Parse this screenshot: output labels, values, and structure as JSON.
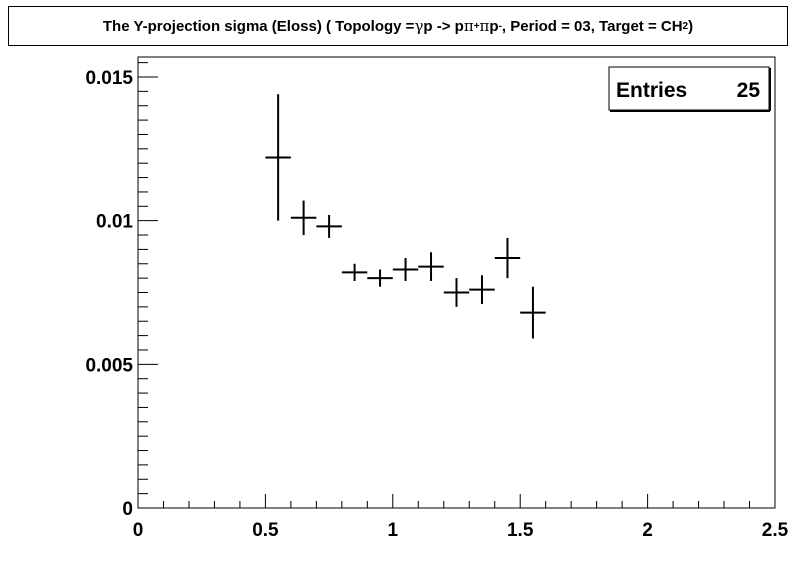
{
  "chart_data": {
    "type": "scatter",
    "title": {
      "prefix": "The Y-projection sigma (Eloss) ( Topology = ",
      "gamma": "γ",
      "mid1": " p -> p ",
      "pi": "π",
      "plus": "+",
      "mid2": " ",
      "pi2": "π",
      "p": "p",
      "minus": "-",
      "mid3": ", Period = 03, Target = CH",
      "sub2": "2",
      "suffix": " )"
    },
    "stats": {
      "label": "Entries",
      "value": "25"
    },
    "xlabel": "",
    "ylabel": "",
    "xlim": [
      0,
      2.5
    ],
    "ylim": [
      0,
      0.016
    ],
    "x_ticks": [
      {
        "v": 0,
        "label": "0"
      },
      {
        "v": 0.5,
        "label": "0.5"
      },
      {
        "v": 1,
        "label": "1"
      },
      {
        "v": 1.5,
        "label": "1.5"
      },
      {
        "v": 2,
        "label": "2"
      },
      {
        "v": 2.5,
        "label": "2.5"
      }
    ],
    "y_ticks": [
      {
        "v": 0,
        "label": "0"
      },
      {
        "v": 0.005,
        "label": "0.005"
      },
      {
        "v": 0.01,
        "label": "0.01"
      },
      {
        "v": 0.015,
        "label": "0.015"
      }
    ],
    "bin_half_width": 0.05,
    "points": [
      {
        "x": 0.55,
        "y": 0.0122,
        "err": 0.0022
      },
      {
        "x": 0.65,
        "y": 0.0101,
        "err": 0.0006
      },
      {
        "x": 0.75,
        "y": 0.0098,
        "err": 0.0004
      },
      {
        "x": 0.85,
        "y": 0.0082,
        "err": 0.0003
      },
      {
        "x": 0.95,
        "y": 0.008,
        "err": 0.0003
      },
      {
        "x": 1.05,
        "y": 0.0083,
        "err": 0.0004
      },
      {
        "x": 1.15,
        "y": 0.0084,
        "err": 0.0005
      },
      {
        "x": 1.25,
        "y": 0.0075,
        "err": 0.0005
      },
      {
        "x": 1.35,
        "y": 0.0076,
        "err": 0.0005
      },
      {
        "x": 1.45,
        "y": 0.0087,
        "err": 0.0007
      },
      {
        "x": 1.55,
        "y": 0.0068,
        "err": 0.0009
      }
    ]
  }
}
